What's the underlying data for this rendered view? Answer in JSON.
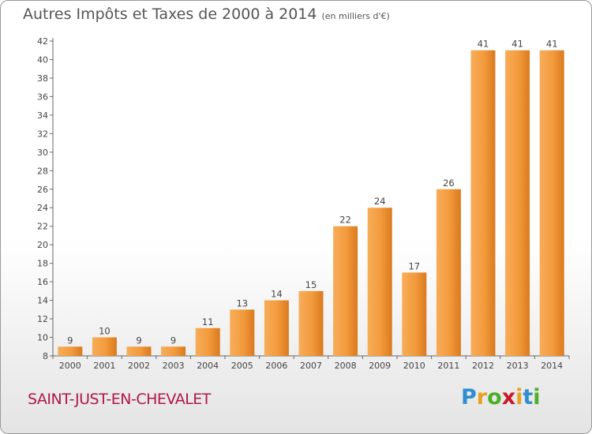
{
  "header": {
    "title": "Autres Impôts et Taxes de 2000 à 2014",
    "subtitle": "(en milliers d'€)"
  },
  "footer": {
    "town": "SAINT-JUST-EN-CHEVALET",
    "brand_letters": [
      "P",
      "r",
      "o",
      "x",
      "i",
      "t",
      "i"
    ],
    "brand_colors": [
      "#2e8fd0",
      "#e8a020",
      "#4caf28",
      "#c8182b",
      "#e8a020",
      "#2e8fd0",
      "#4caf28"
    ]
  },
  "chart_data": {
    "type": "bar",
    "categories": [
      "2000",
      "2001",
      "2002",
      "2003",
      "2004",
      "2005",
      "2006",
      "2007",
      "2008",
      "2009",
      "2010",
      "2011",
      "2012",
      "2013",
      "2014"
    ],
    "values": [
      9,
      10,
      9,
      9,
      11,
      13,
      14,
      15,
      22,
      24,
      17,
      26,
      41,
      41,
      41
    ],
    "ylim": [
      8,
      42
    ],
    "yticks": [
      8,
      10,
      12,
      14,
      16,
      18,
      20,
      22,
      24,
      26,
      28,
      30,
      32,
      34,
      36,
      38,
      40,
      42
    ],
    "grid": false,
    "bar_color": "#f39a3c"
  }
}
